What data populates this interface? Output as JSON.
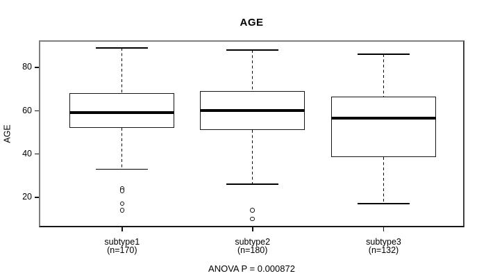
{
  "chart_data": {
    "type": "boxplot",
    "title": "AGE",
    "ylabel": "AGE",
    "xlabel": "",
    "annotation": "ANOVA P = 0.000872",
    "grid": false,
    "legend": null,
    "yticks": [
      20,
      40,
      60,
      80
    ],
    "ylim": [
      6.15,
      92.5
    ],
    "groups": [
      {
        "label": "subtype1",
        "sublabel": "(n=170)",
        "n": 170,
        "lower_whisker": 33,
        "q1": 52,
        "median": 59,
        "q3": 68,
        "upper_whisker": 89,
        "outliers": [
          24,
          23,
          17,
          14
        ]
      },
      {
        "label": "subtype2",
        "sublabel": "(n=180)",
        "n": 180,
        "lower_whisker": 26,
        "q1": 51,
        "median": 60,
        "q3": 69,
        "upper_whisker": 88,
        "outliers": [
          14,
          10
        ]
      },
      {
        "label": "subtype3",
        "sublabel": "(n=132)",
        "n": 132,
        "lower_whisker": 17,
        "q1": 38.5,
        "median": 56.5,
        "q3": 66.5,
        "upper_whisker": 86,
        "outliers": []
      }
    ]
  }
}
